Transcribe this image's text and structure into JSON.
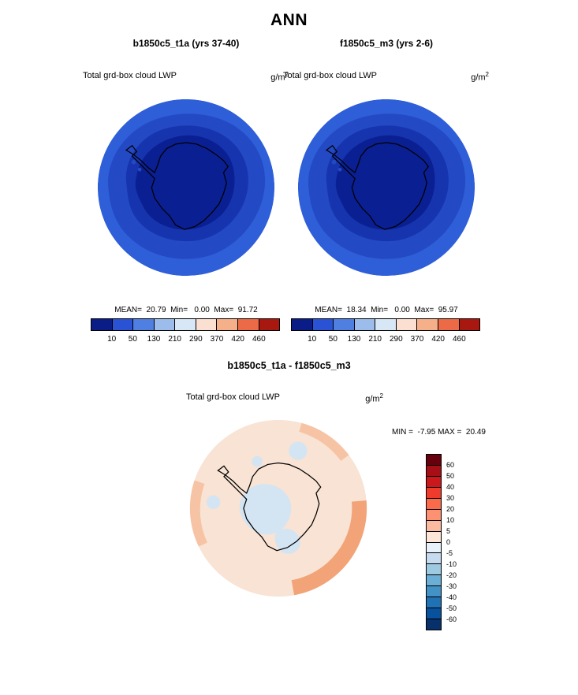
{
  "page": {
    "title": "ANN"
  },
  "panels": [
    {
      "subtitle": "b1850c5_t1a (yrs 37-40)",
      "var_label": "Total grd-box cloud LWP",
      "units_base": "g/m",
      "units_exp": "2",
      "stats": "MEAN=  20.79  Min=   0.00  Max=  91.72"
    },
    {
      "subtitle": "f1850c5_m3 (yrs 2-6)",
      "var_label": "Total grd-box cloud LWP",
      "units_base": "g/m",
      "units_exp": "2",
      "stats": "MEAN=  18.34  Min=   0.00  Max=  95.97"
    }
  ],
  "top_colorbar": {
    "ticks": [
      "10",
      "50",
      "130",
      "210",
      "290",
      "370",
      "420",
      "460"
    ],
    "colors": [
      "#0a1c86",
      "#2a52d4",
      "#4f7fe0",
      "#9cbdeb",
      "#d8e7f5",
      "#fbe0d2",
      "#f6b089",
      "#ec6a45",
      "#a81810"
    ]
  },
  "diff": {
    "title": "b1850c5_t1a - f1850c5_m3",
    "var_label": "Total grd-box cloud LWP",
    "units_base": "g/m",
    "units_exp": "2",
    "minmax": "MIN =  -7.95 MAX =  20.49",
    "colorbar": {
      "labels": [
        "60",
        "50",
        "40",
        "30",
        "20",
        "10",
        "5",
        "0",
        "-5",
        "-10",
        "-20",
        "-30",
        "-40",
        "-50",
        "-60"
      ],
      "colors": [
        "#67000d",
        "#a50f15",
        "#cb181d",
        "#ef3b2c",
        "#fb6a4a",
        "#fc9272",
        "#fcbba1",
        "#fde5d8",
        "#e8f1fa",
        "#c6dbef",
        "#9ecae1",
        "#6baed6",
        "#4292c6",
        "#2171b5",
        "#08519c",
        "#08306b"
      ]
    }
  },
  "map_colors": {
    "lwp_outer": "#2e5ed8",
    "lwp_mid": "#2349c4",
    "lwp_inner": "#1634ae",
    "lwp_continent": "#0a1f92",
    "coast": "#000000",
    "diff_base": "#f8e3d4",
    "diff_orange": "#f2a478",
    "diff_orange_light": "#f6c4a4",
    "diff_blue_light": "#d3e4f3"
  },
  "chart_data": [
    {
      "type": "heatmap",
      "panel": "left",
      "title": "b1850c5_t1a (yrs 37-40)",
      "variable": "Total grd-box cloud LWP",
      "units": "g/m2",
      "projection": "South polar stereographic (Antarctica)",
      "mean": 20.79,
      "min": 0.0,
      "max": 91.72,
      "contour_levels": [
        10,
        50,
        130,
        210,
        290,
        370,
        420,
        460
      ],
      "palette": "blue-to-red",
      "pattern": "lowest LWP (darkest blue) over Antarctic continent interior, increasing toward ocean edge (brighter blue outer ring)"
    },
    {
      "type": "heatmap",
      "panel": "right",
      "title": "f1850c5_m3 (yrs 2-6)",
      "variable": "Total grd-box cloud LWP",
      "units": "g/m2",
      "projection": "South polar stereographic (Antarctica)",
      "mean": 18.34,
      "min": 0.0,
      "max": 95.97,
      "contour_levels": [
        10,
        50,
        130,
        210,
        290,
        370,
        420,
        460
      ],
      "palette": "blue-to-red",
      "pattern": "lowest LWP (darkest blue) over Antarctic continent interior, increasing toward ocean edge (brighter blue outer ring)"
    },
    {
      "type": "heatmap",
      "panel": "difference",
      "title": "b1850c5_t1a - f1850c5_m3",
      "variable": "Total grd-box cloud LWP",
      "units": "g/m2",
      "projection": "South polar stereographic (Antarctica)",
      "min": -7.95,
      "max": 20.49,
      "contour_levels": [
        -60,
        -50,
        -40,
        -30,
        -20,
        -10,
        -5,
        0,
        5,
        10,
        20,
        30,
        40,
        50,
        60
      ],
      "palette": "blue-to-red",
      "pattern": "mostly weak positive differences (pale orange), small negative patches (pale blue) over continent interior, stronger positive band near lower-right rim"
    }
  ]
}
